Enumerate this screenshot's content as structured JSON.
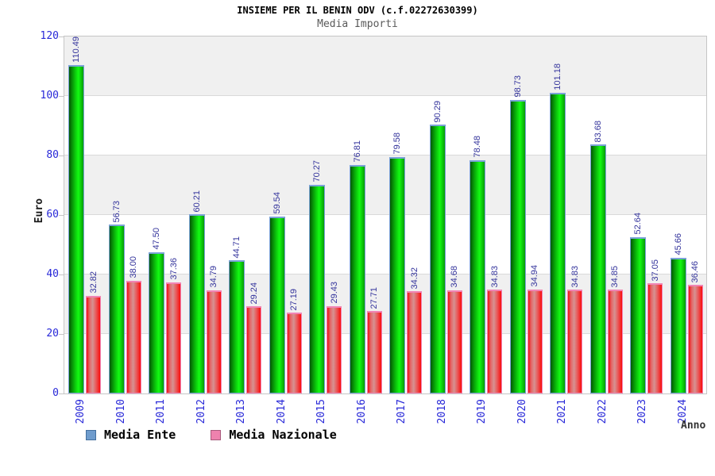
{
  "chart_data": {
    "type": "bar",
    "title": "INSIEME PER IL BENIN ODV (c.f.02272630399)",
    "subtitle": "Media Importi",
    "xlabel": "Anno",
    "ylabel": "Euro",
    "ylim": [
      0,
      120
    ],
    "ytick_step": 20,
    "yticks": [
      0,
      20,
      40,
      60,
      80,
      100,
      120
    ],
    "grid": true,
    "banded_background": true,
    "legend_position": "bottom-left",
    "value_label_decimals": 2,
    "categories": [
      "2009",
      "2010",
      "2011",
      "2012",
      "2013",
      "2014",
      "2015",
      "2016",
      "2017",
      "2018",
      "2019",
      "2020",
      "2021",
      "2022",
      "2023",
      "2024"
    ],
    "series": [
      {
        "name": "Media Ente",
        "bar_color": "#00cc00",
        "legend_color": "#6f9ccd",
        "legend_border": "#44709e",
        "values": [
          110.49,
          56.73,
          47.5,
          60.21,
          44.71,
          59.54,
          70.27,
          76.81,
          79.58,
          90.29,
          78.48,
          98.73,
          101.18,
          83.68,
          52.64,
          45.66
        ]
      },
      {
        "name": "Media Nazionale",
        "bar_color": "#ee2222",
        "legend_color": "#ee82ae",
        "legend_border": "#a85a7c",
        "values": [
          32.82,
          38.0,
          37.36,
          34.79,
          29.24,
          27.19,
          29.43,
          27.71,
          34.32,
          34.68,
          34.83,
          34.94,
          34.83,
          34.85,
          37.05,
          36.46
        ]
      }
    ],
    "colors": {
      "axis_text": "#2828d8",
      "value_label_text": "#34349c",
      "band_fill": "#f0f0f0",
      "gridline": "#d9d9d9",
      "plot_border": "#c6c6c6",
      "title_text": "#000000",
      "subtitle_text": "#5a5a5a"
    }
  }
}
